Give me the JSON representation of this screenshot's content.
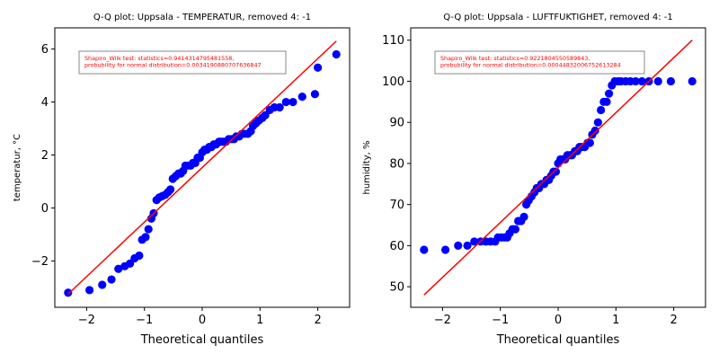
{
  "chart_data": [
    {
      "type": "scatter",
      "title": "Q-Q plot: Uppsala - TEMPERATUR, removed 4: -1",
      "xlabel": "Theoretical quantiles",
      "ylabel": "temperatur, °C",
      "xlim": [
        -2.55,
        2.55
      ],
      "ylim": [
        -3.75,
        6.8
      ],
      "xticks": [
        -2,
        -1,
        0,
        1,
        2
      ],
      "xtick_labels": [
        "−2",
        "−1",
        "0",
        "1",
        "2"
      ],
      "yticks": [
        -2,
        0,
        2,
        4,
        6
      ],
      "ytick_labels": [
        "−2",
        "0",
        "2",
        "4",
        "6"
      ],
      "annotation": [
        "Shapiro_Wilk test: statistics=0.9414314795481558,",
        " probubility for normal distribution=0.0034190880707636847"
      ],
      "fit_line": [
        [
          -2.32,
          -3.25
        ],
        [
          2.32,
          6.3
        ]
      ],
      "points_color": "#0000ff",
      "line_color": "#ff0000",
      "points": [
        [
          -2.32,
          -3.2
        ],
        [
          -1.95,
          -3.1
        ],
        [
          -1.73,
          -2.9
        ],
        [
          -1.57,
          -2.7
        ],
        [
          -1.45,
          -2.3
        ],
        [
          -1.34,
          -2.2
        ],
        [
          -1.25,
          -2.1
        ],
        [
          -1.17,
          -1.9
        ],
        [
          -1.09,
          -1.8
        ],
        [
          -1.04,
          -1.2
        ],
        [
          -0.98,
          -1.1
        ],
        [
          -0.93,
          -0.8
        ],
        [
          -0.88,
          -0.4
        ],
        [
          -0.84,
          -0.2
        ],
        [
          -0.79,
          0.3
        ],
        [
          -0.74,
          0.4
        ],
        [
          -0.69,
          0.45
        ],
        [
          -0.64,
          0.5
        ],
        [
          -0.59,
          0.6
        ],
        [
          -0.55,
          0.7
        ],
        [
          -0.51,
          1.1
        ],
        [
          -0.46,
          1.2
        ],
        [
          -0.41,
          1.3
        ],
        [
          -0.37,
          1.3
        ],
        [
          -0.33,
          1.4
        ],
        [
          -0.29,
          1.6
        ],
        [
          -0.24,
          1.6
        ],
        [
          -0.2,
          1.6
        ],
        [
          -0.16,
          1.7
        ],
        [
          -0.12,
          1.7
        ],
        [
          -0.08,
          1.9
        ],
        [
          -0.04,
          1.9
        ],
        [
          0.0,
          2.1
        ],
        [
          0.04,
          2.2
        ],
        [
          0.08,
          2.2
        ],
        [
          0.12,
          2.3
        ],
        [
          0.16,
          2.3
        ],
        [
          0.2,
          2.4
        ],
        [
          0.24,
          2.4
        ],
        [
          0.29,
          2.5
        ],
        [
          0.33,
          2.5
        ],
        [
          0.37,
          2.5
        ],
        [
          0.41,
          2.5
        ],
        [
          0.46,
          2.6
        ],
        [
          0.51,
          2.6
        ],
        [
          0.55,
          2.6
        ],
        [
          0.59,
          2.7
        ],
        [
          0.64,
          2.7
        ],
        [
          0.69,
          2.8
        ],
        [
          0.74,
          2.8
        ],
        [
          0.79,
          2.8
        ],
        [
          0.84,
          2.9
        ],
        [
          0.88,
          3.1
        ],
        [
          0.93,
          3.2
        ],
        [
          0.98,
          3.3
        ],
        [
          1.04,
          3.4
        ],
        [
          1.09,
          3.5
        ],
        [
          1.17,
          3.7
        ],
        [
          1.25,
          3.8
        ],
        [
          1.34,
          3.8
        ],
        [
          1.45,
          4.0
        ],
        [
          1.57,
          4.0
        ],
        [
          1.73,
          4.2
        ],
        [
          1.95,
          4.3
        ],
        [
          2.0,
          5.3
        ],
        [
          2.32,
          5.8
        ]
      ]
    },
    {
      "type": "scatter",
      "title": "Q-Q plot: Uppsala - LUFTFUKTIGHET, removed 4: -1",
      "xlabel": "Theoretical quantiles",
      "ylabel": "humidity, %",
      "xlim": [
        -2.55,
        2.55
      ],
      "ylim": [
        45,
        113
      ],
      "xticks": [
        -2,
        -1,
        0,
        1,
        2
      ],
      "xtick_labels": [
        "−2",
        "−1",
        "0",
        "1",
        "2"
      ],
      "yticks": [
        50,
        60,
        70,
        80,
        90,
        100,
        110
      ],
      "ytick_labels": [
        "50",
        "60",
        "70",
        "80",
        "90",
        "100",
        "110"
      ],
      "annotation": [
        "Shapiro_Wilk test: statistics=0.9221804550589843,",
        " probubility for normal distribution=0.00044832006752613284"
      ],
      "fit_line": [
        [
          -2.32,
          48
        ],
        [
          2.32,
          110
        ]
      ],
      "points_color": "#0000ff",
      "line_color": "#ff0000",
      "points": [
        [
          -2.32,
          59
        ],
        [
          -1.95,
          59
        ],
        [
          -1.73,
          60
        ],
        [
          -1.57,
          60
        ],
        [
          -1.45,
          61
        ],
        [
          -1.34,
          61
        ],
        [
          -1.25,
          61
        ],
        [
          -1.17,
          61
        ],
        [
          -1.09,
          61
        ],
        [
          -1.04,
          62
        ],
        [
          -0.98,
          62
        ],
        [
          -0.93,
          62
        ],
        [
          -0.88,
          62
        ],
        [
          -0.84,
          63
        ],
        [
          -0.79,
          64
        ],
        [
          -0.74,
          64
        ],
        [
          -0.69,
          66
        ],
        [
          -0.64,
          66
        ],
        [
          -0.59,
          67
        ],
        [
          -0.55,
          70
        ],
        [
          -0.51,
          71
        ],
        [
          -0.46,
          72
        ],
        [
          -0.41,
          73
        ],
        [
          -0.37,
          74
        ],
        [
          -0.33,
          74
        ],
        [
          -0.29,
          75
        ],
        [
          -0.24,
          75
        ],
        [
          -0.2,
          76
        ],
        [
          -0.16,
          76
        ],
        [
          -0.12,
          77
        ],
        [
          -0.08,
          78
        ],
        [
          -0.04,
          78
        ],
        [
          0.0,
          80
        ],
        [
          0.04,
          81
        ],
        [
          0.08,
          81
        ],
        [
          0.12,
          81
        ],
        [
          0.16,
          82
        ],
        [
          0.2,
          82
        ],
        [
          0.24,
          82
        ],
        [
          0.29,
          83
        ],
        [
          0.33,
          83
        ],
        [
          0.37,
          84
        ],
        [
          0.41,
          84
        ],
        [
          0.46,
          84
        ],
        [
          0.51,
          85
        ],
        [
          0.55,
          85
        ],
        [
          0.59,
          87
        ],
        [
          0.64,
          88
        ],
        [
          0.69,
          90
        ],
        [
          0.74,
          93
        ],
        [
          0.79,
          95
        ],
        [
          0.84,
          95
        ],
        [
          0.88,
          97
        ],
        [
          0.93,
          99
        ],
        [
          0.98,
          100
        ],
        [
          1.04,
          100
        ],
        [
          1.09,
          100
        ],
        [
          1.17,
          100
        ],
        [
          1.25,
          100
        ],
        [
          1.34,
          100
        ],
        [
          1.45,
          100
        ],
        [
          1.57,
          100
        ],
        [
          1.73,
          100
        ],
        [
          1.95,
          100
        ],
        [
          2.32,
          100
        ]
      ]
    }
  ]
}
